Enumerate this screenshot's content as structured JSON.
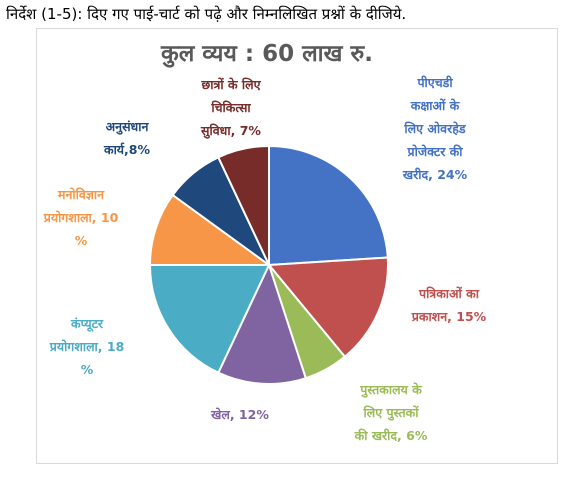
{
  "instruction": "निर्देश (1-5): दिए गए पाई-चार्ट को पढ़े और निम्नलिखित प्रश्नों के दीजिये.",
  "chart_data": {
    "type": "pie",
    "title": "कुल व्यय : 60 लाख रु.",
    "slices": [
      {
        "name": "पीएचडी कक्षाओं के लिए ओवरहेड प्रोजेक्टर की खरीद",
        "value": 24,
        "color": "#4472c4",
        "label_lines": [
          "पीएचडी",
          "कक्षाओं के",
          "लिए ओवरहेड",
          "प्रोजेक्टर की",
          "खरीद, 24%"
        ]
      },
      {
        "name": "पत्रिकाओं का प्रकाशन",
        "value": 15,
        "color": "#c0504d",
        "label_lines": [
          "पत्रिकाओं का",
          "प्रकाशन, 15%"
        ]
      },
      {
        "name": "पुस्तकालय के लिए पुस्तकों की खरीद",
        "value": 6,
        "color": "#9bbb59",
        "label_lines": [
          "पुस्तकालय के",
          "लिए पुस्तकों",
          "की खरीद, 6%"
        ]
      },
      {
        "name": "खेल",
        "value": 12,
        "color": "#8064a2",
        "label_lines": [
          "खेल, 12%"
        ]
      },
      {
        "name": "कंप्यूटर प्रयोगशाला",
        "value": 18,
        "color": "#4bacc6",
        "label_lines": [
          "कंप्यूटर",
          "प्रयोगशाला, 18",
          "%"
        ]
      },
      {
        "name": "मनोविज्ञान प्रयोगशाला",
        "value": 10,
        "color": "#f79646",
        "label_lines": [
          "मनोविज्ञान",
          "प्रयोगशाला, 10",
          "%"
        ]
      },
      {
        "name": "अनुसंधान कार्य",
        "value": 8,
        "color": "#1f497d",
        "label_lines": [
          "अनुसंधान",
          "कार्य,8%"
        ]
      },
      {
        "name": "छात्रों के लिए चिकित्सा सुविधा",
        "value": 7,
        "color": "#772c2a",
        "label_lines": [
          "छात्रों के लिए",
          "चिकित्सा",
          "सुविधा, 7%"
        ]
      }
    ],
    "start_angle": "12 o'clock",
    "direction": "clockwise",
    "legend": "none"
  }
}
